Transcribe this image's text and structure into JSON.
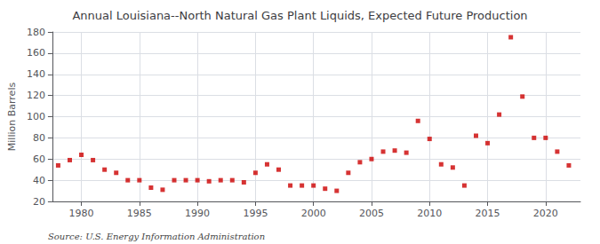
{
  "chart_data": {
    "type": "scatter",
    "title": "Annual Louisiana--North Natural Gas Plant Liquids, Expected Future Production",
    "ylabel": "Million Barrels",
    "source": "Source: U.S. Energy Information Administration",
    "x": [
      1978,
      1979,
      1980,
      1981,
      1982,
      1983,
      1984,
      1985,
      1986,
      1987,
      1988,
      1989,
      1990,
      1991,
      1992,
      1993,
      1994,
      1995,
      1996,
      1997,
      1998,
      1999,
      2000,
      2001,
      2002,
      2003,
      2004,
      2005,
      2006,
      2007,
      2008,
      2009,
      2010,
      2011,
      2012,
      2013,
      2014,
      2015,
      2016,
      2017,
      2018,
      2019,
      2020,
      2021,
      2022
    ],
    "values": [
      54,
      59,
      64,
      59,
      50,
      47,
      40,
      40,
      33,
      31,
      40,
      40,
      40,
      39,
      40,
      40,
      38,
      47,
      55,
      50,
      35,
      35,
      35,
      32,
      30,
      47,
      57,
      60,
      67,
      68,
      66,
      96,
      79,
      55,
      52,
      35,
      82,
      75,
      102,
      175,
      119,
      80,
      80,
      67,
      54
    ],
    "color": "#cc0000",
    "marker": "square",
    "xlim": [
      1977.5,
      2023
    ],
    "xticks": [
      1980,
      1985,
      1990,
      1995,
      2000,
      2005,
      2010,
      2015,
      2020
    ],
    "ylim": [
      20,
      180
    ],
    "yticks": [
      20,
      40,
      60,
      80,
      100,
      120,
      140,
      160,
      180
    ],
    "grid": true
  }
}
